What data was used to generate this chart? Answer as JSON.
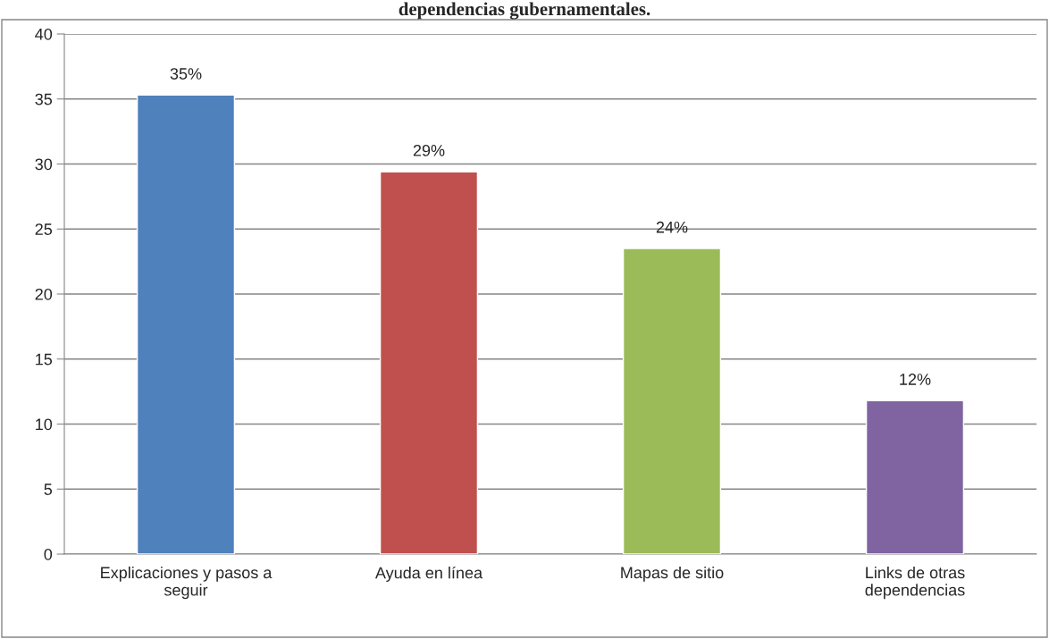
{
  "chart_data": {
    "type": "bar",
    "title": "dependencias gubernamentales.",
    "categories": [
      "Explicaciones y pasos a\nseguir",
      "Ayuda en línea",
      "Mapas de sitio",
      "Links de otras\ndependencias"
    ],
    "values": [
      35.3,
      29.4,
      23.5,
      11.8
    ],
    "colors": [
      "#4f81bd",
      "#c0504d",
      "#9bbb59",
      "#8064a2"
    ],
    "value_labels": [
      "35%",
      "29%",
      "24%",
      "12%"
    ],
    "ylim": [
      0,
      40
    ],
    "yticks": [
      0,
      5,
      10,
      15,
      20,
      25,
      30,
      35,
      40
    ],
    "grid": "y",
    "legend": false
  }
}
